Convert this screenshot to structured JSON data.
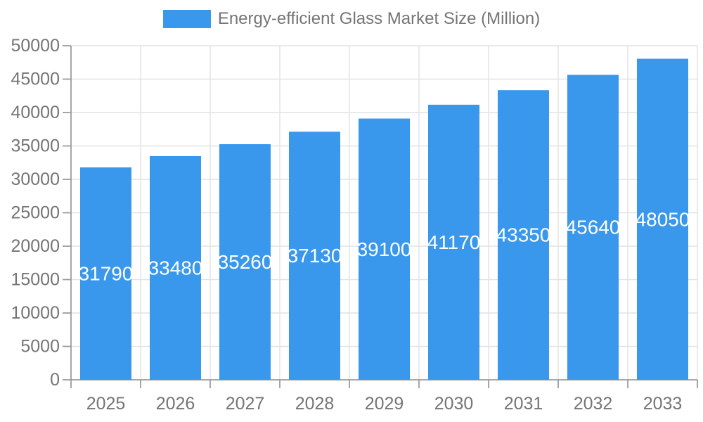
{
  "legend": {
    "label": "Energy-efficient Glass Market Size (Million)"
  },
  "chart_data": {
    "type": "bar",
    "title": "Energy-efficient Glass Market Size (Million)",
    "categories": [
      "2025",
      "2026",
      "2027",
      "2028",
      "2029",
      "2030",
      "2031",
      "2032",
      "2033"
    ],
    "values": [
      31790,
      33480,
      35260,
      37130,
      39100,
      41170,
      43350,
      45640,
      48050
    ],
    "series_name": "Energy-efficient Glass Market Size (Million)",
    "xlabel": "",
    "ylabel": "",
    "ylim": [
      0,
      50000
    ],
    "y_tick_step": 5000,
    "y_tick_labels": [
      "0",
      "5000",
      "10000",
      "15000",
      "20000",
      "25000",
      "30000",
      "35000",
      "40000",
      "45000",
      "50000"
    ],
    "grid": true,
    "legend_position": "top-center",
    "value_label_position": "inside-middle",
    "colors": {
      "bar": "#3998EC",
      "grid": "#e2e2e2",
      "axis": "#9c9c9c",
      "tick_text": "#757575",
      "legend_text": "#757575",
      "value_text": "#ffffff",
      "background": "#ffffff"
    }
  }
}
